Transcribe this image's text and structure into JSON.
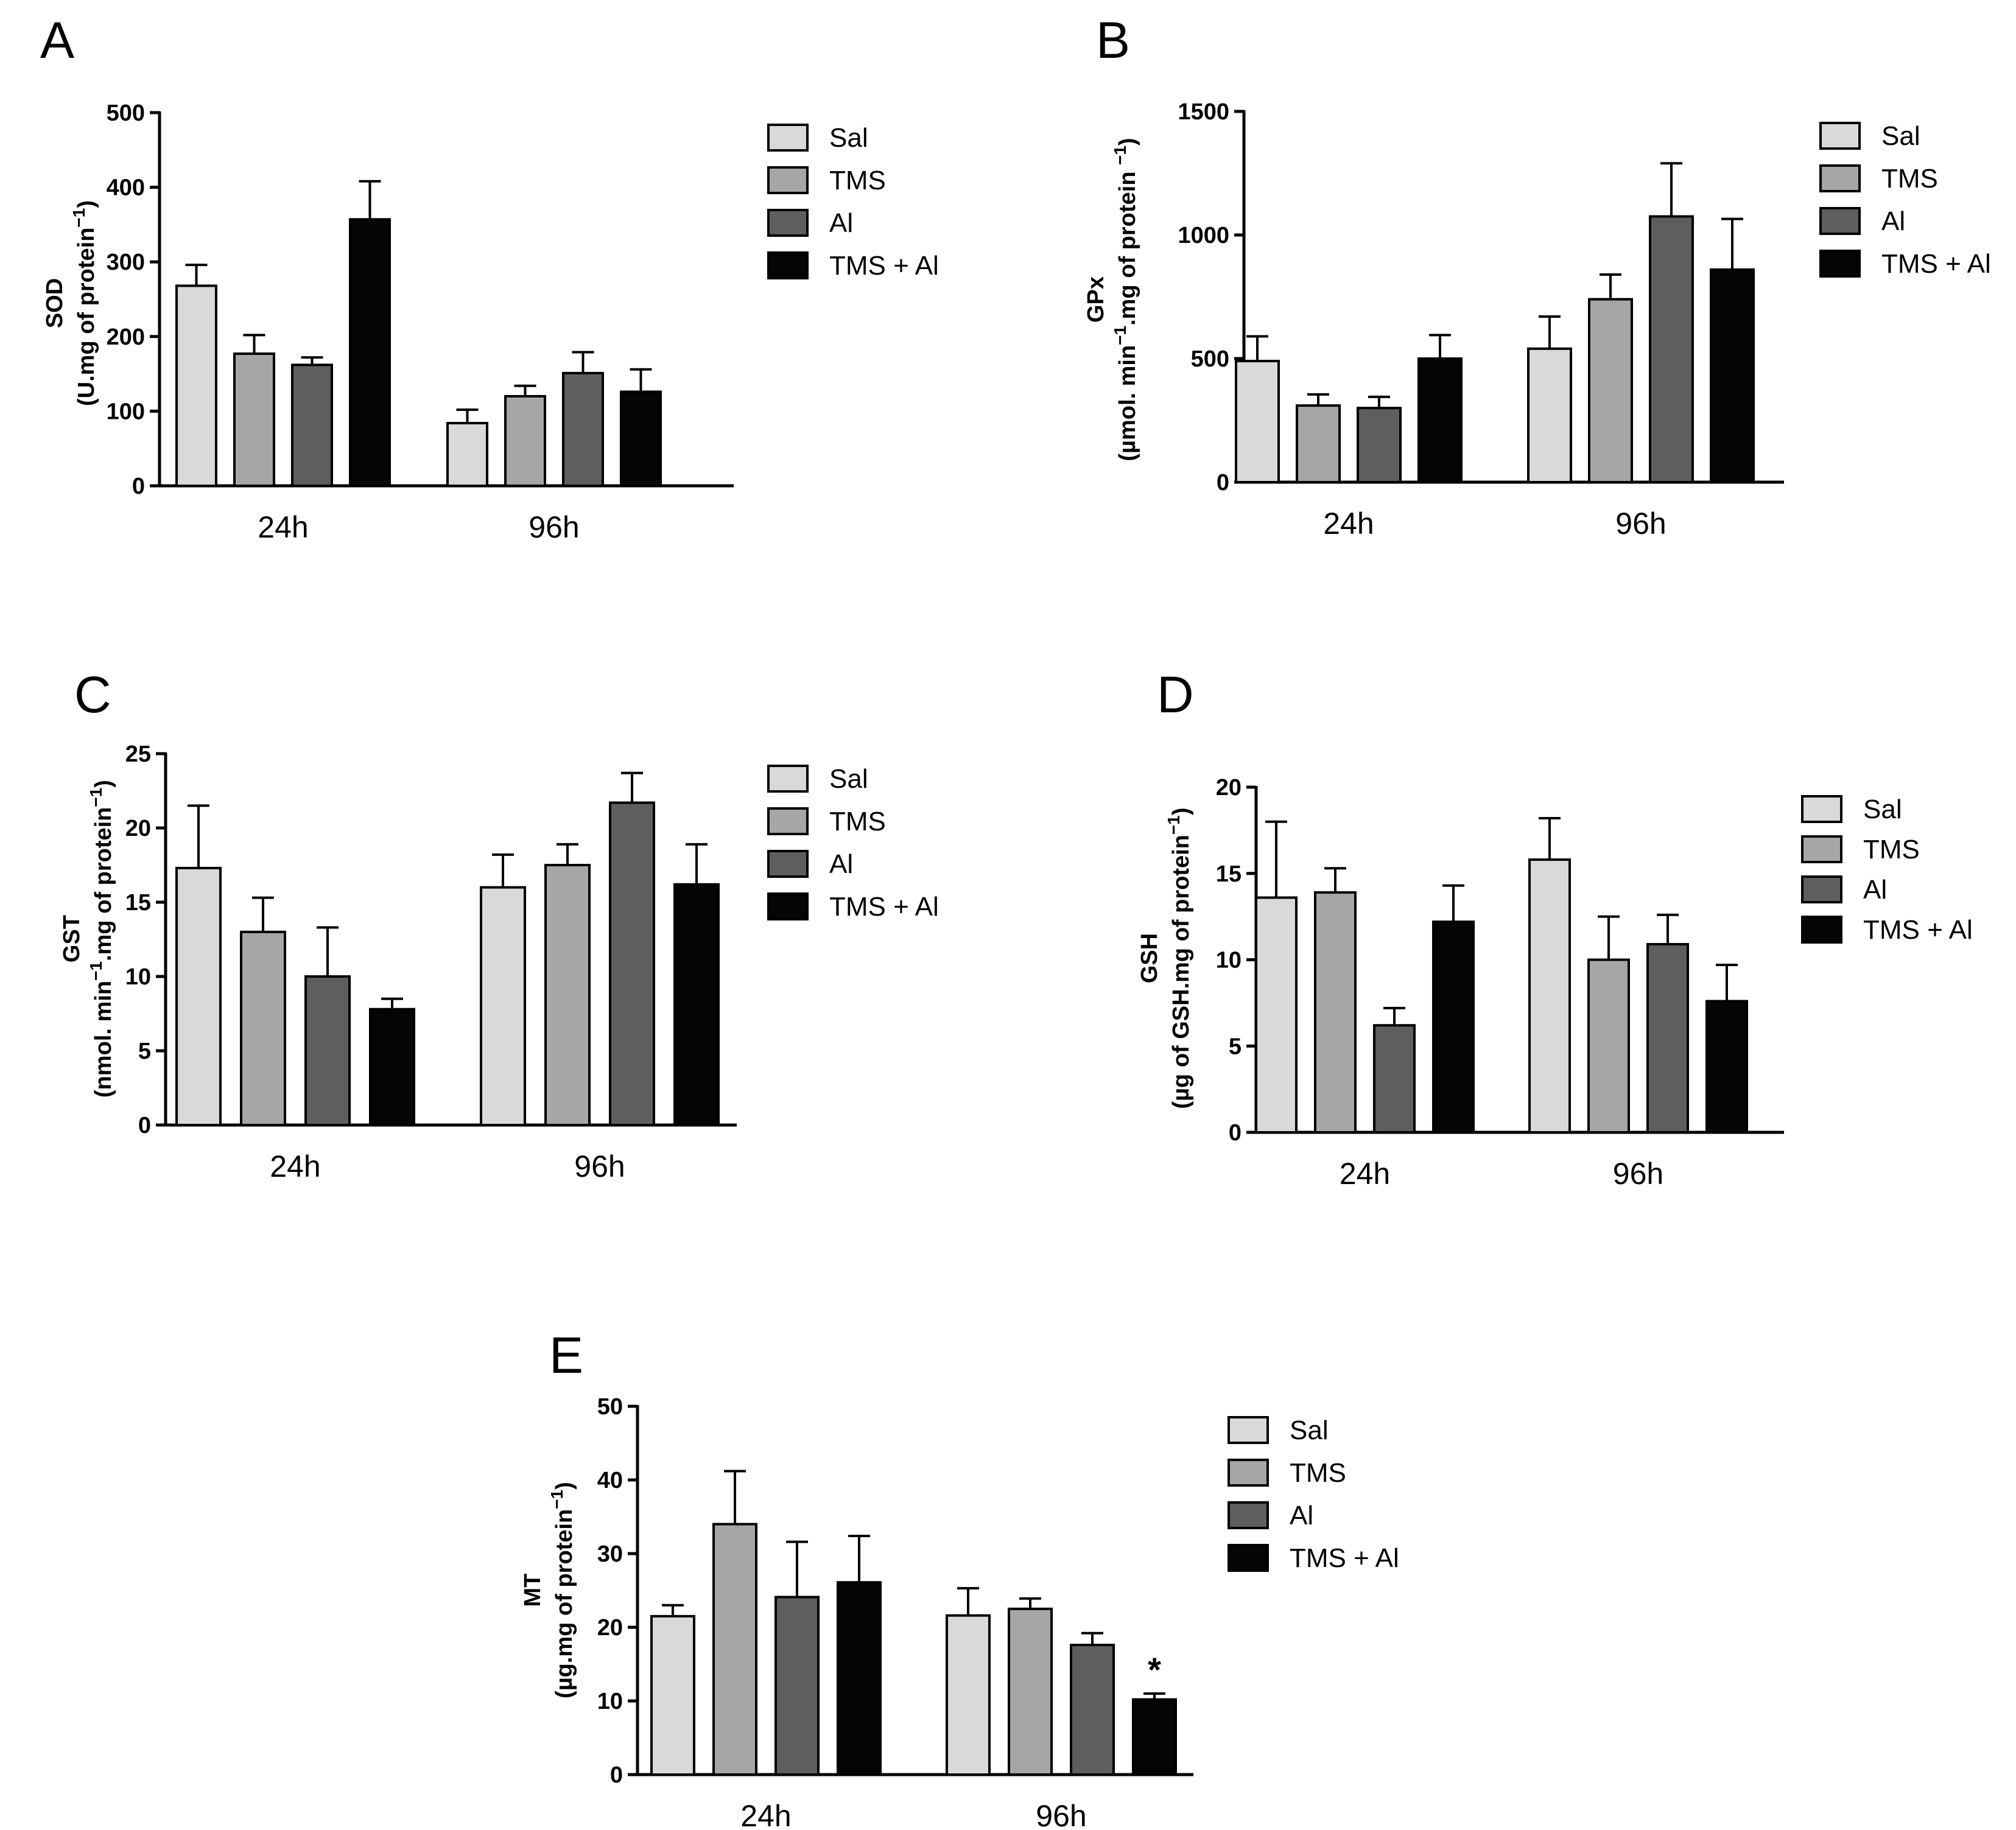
{
  "chart_data": [
    {
      "panel": "A",
      "type": "bar",
      "ylabel_main": "SOD",
      "ylabel_parts": [
        [
          "(U.mg of protein",
          ""
        ],
        [
          "−1",
          "sup"
        ],
        [
          ")",
          ""
        ]
      ],
      "ylim": [
        0,
        500
      ],
      "yticks": [
        0,
        100,
        200,
        300,
        400,
        500
      ],
      "categories": [
        "24h",
        "96h"
      ],
      "legend": [
        "Sal",
        "TMS",
        "Al",
        "TMS + Al"
      ],
      "series": [
        {
          "name": "Sal",
          "color": "#d9d9d9",
          "values": [
            268,
            84
          ],
          "errors": [
            28,
            18
          ]
        },
        {
          "name": "TMS",
          "color": "#a6a6a8",
          "values": [
            177,
            120
          ],
          "errors": [
            25,
            14
          ]
        },
        {
          "name": "Al",
          "color": "#5e5e5e",
          "values": [
            162,
            151
          ],
          "errors": [
            10,
            28
          ]
        },
        {
          "name": "TMS + Al",
          "color": "#050505",
          "values": [
            357,
            126
          ],
          "errors": [
            51,
            30
          ]
        }
      ],
      "annotations": []
    },
    {
      "panel": "B",
      "type": "bar",
      "ylabel_main": "GPx",
      "ylabel_parts": [
        [
          "(µmol. min",
          ""
        ],
        [
          "−1",
          "sup"
        ],
        [
          ".mg of protein ",
          ""
        ],
        [
          "−1",
          "sup"
        ],
        [
          ")",
          ""
        ]
      ],
      "ylim": [
        0,
        1500
      ],
      "yticks": [
        0,
        500,
        1000,
        1500
      ],
      "categories": [
        "24h",
        "96h"
      ],
      "legend": [
        "Sal",
        "TMS",
        "Al",
        "TMS + Al"
      ],
      "series": [
        {
          "name": "Sal",
          "color": "#d9d9d9",
          "values": [
            490,
            540
          ],
          "errors": [
            100,
            130
          ]
        },
        {
          "name": "TMS",
          "color": "#a6a6a8",
          "values": [
            310,
            740
          ],
          "errors": [
            45,
            100
          ]
        },
        {
          "name": "Al",
          "color": "#5e5e5e",
          "values": [
            300,
            1075
          ],
          "errors": [
            45,
            215
          ]
        },
        {
          "name": "TMS + Al",
          "color": "#050505",
          "values": [
            500,
            860
          ],
          "errors": [
            95,
            205
          ]
        }
      ],
      "annotations": []
    },
    {
      "panel": "C",
      "type": "bar",
      "ylabel_main": "GST",
      "ylabel_parts": [
        [
          "(nmol. min",
          ""
        ],
        [
          "−1",
          "sup"
        ],
        [
          ".mg of protein",
          ""
        ],
        [
          "−1",
          "sup"
        ],
        [
          ")",
          ""
        ]
      ],
      "ylim": [
        0,
        25
      ],
      "yticks": [
        0,
        5,
        10,
        15,
        20,
        25
      ],
      "categories": [
        "24h",
        "96h"
      ],
      "legend": [
        "Sal",
        "TMS",
        "Al",
        "TMS + Al"
      ],
      "series": [
        {
          "name": "Sal",
          "color": "#d9d9d9",
          "values": [
            17.3,
            16.0
          ],
          "errors": [
            4.2,
            2.2
          ]
        },
        {
          "name": "TMS",
          "color": "#a6a6a8",
          "values": [
            13.0,
            17.5
          ],
          "errors": [
            2.3,
            1.4
          ]
        },
        {
          "name": "Al",
          "color": "#5e5e5e",
          "values": [
            10.0,
            21.7
          ],
          "errors": [
            3.3,
            2.0
          ]
        },
        {
          "name": "TMS + Al",
          "color": "#050505",
          "values": [
            7.8,
            16.2
          ],
          "errors": [
            0.7,
            2.7
          ]
        }
      ],
      "annotations": []
    },
    {
      "panel": "D",
      "type": "bar",
      "ylabel_main": "GSH",
      "ylabel_parts": [
        [
          "(µg of GSH.mg of protein",
          ""
        ],
        [
          "−1",
          "sup"
        ],
        [
          ")",
          ""
        ]
      ],
      "ylim": [
        0,
        20
      ],
      "yticks": [
        0,
        5,
        10,
        15,
        20
      ],
      "categories": [
        "24h",
        "96h"
      ],
      "legend": [
        "Sal",
        "TMS",
        "Al",
        "TMS + Al"
      ],
      "series": [
        {
          "name": "Sal",
          "color": "#d9d9d9",
          "values": [
            13.6,
            15.8
          ],
          "errors": [
            4.4,
            2.4
          ]
        },
        {
          "name": "TMS",
          "color": "#a6a6a8",
          "values": [
            13.9,
            10.0
          ],
          "errors": [
            1.4,
            2.5
          ]
        },
        {
          "name": "Al",
          "color": "#5e5e5e",
          "values": [
            6.2,
            10.9
          ],
          "errors": [
            1.0,
            1.7
          ]
        },
        {
          "name": "TMS + Al",
          "color": "#050505",
          "values": [
            12.2,
            7.6
          ],
          "errors": [
            2.1,
            2.1
          ]
        }
      ],
      "annotations": []
    },
    {
      "panel": "E",
      "type": "bar",
      "ylabel_main": "MT",
      "ylabel_parts": [
        [
          "(µg.mg of protein",
          ""
        ],
        [
          "−1",
          "sup"
        ],
        [
          ")",
          ""
        ]
      ],
      "ylim": [
        0,
        50
      ],
      "yticks": [
        0,
        10,
        20,
        30,
        40,
        50
      ],
      "categories": [
        "24h",
        "96h"
      ],
      "legend": [
        "Sal",
        "TMS",
        "Al",
        "TMS + Al"
      ],
      "series": [
        {
          "name": "Sal",
          "color": "#d9d9d9",
          "values": [
            21.5,
            21.6
          ],
          "errors": [
            1.5,
            3.7
          ]
        },
        {
          "name": "TMS",
          "color": "#a6a6a8",
          "values": [
            34.0,
            22.5
          ],
          "errors": [
            7.2,
            1.4
          ]
        },
        {
          "name": "Al",
          "color": "#5e5e5e",
          "values": [
            24.1,
            17.6
          ],
          "errors": [
            7.5,
            1.6
          ]
        },
        {
          "name": "TMS + Al",
          "color": "#050505",
          "values": [
            26.1,
            10.2
          ],
          "errors": [
            6.3,
            0.8
          ]
        }
      ],
      "annotations": [
        {
          "series": 3,
          "category": 1,
          "text": "*"
        }
      ]
    }
  ]
}
